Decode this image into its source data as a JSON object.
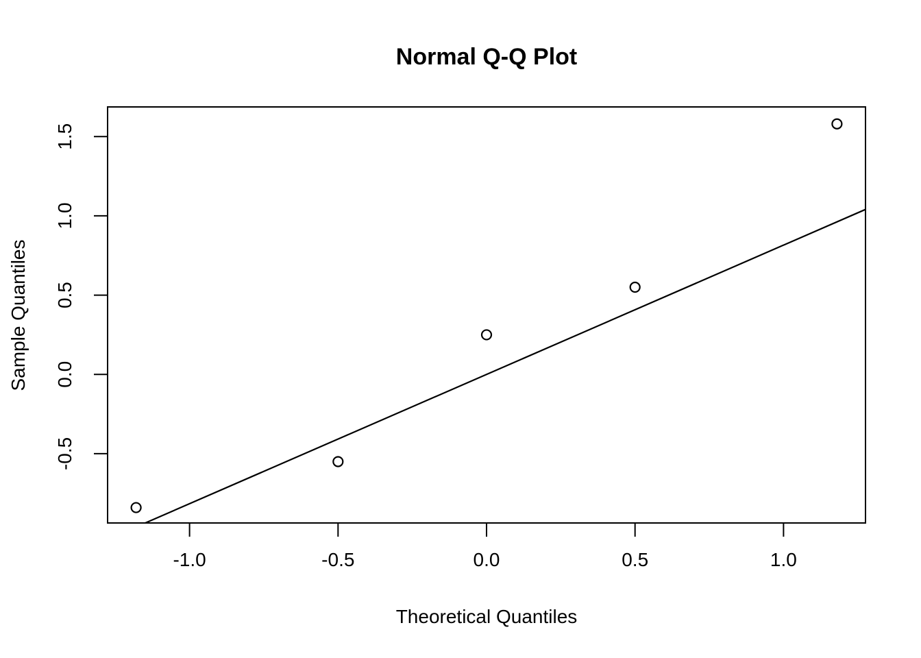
{
  "figure": {
    "background": "#ffffff",
    "stroke_color": "#000000"
  },
  "chart_data": {
    "type": "scatter",
    "title": "Normal Q-Q Plot",
    "xlabel": "Theoretical Quantiles",
    "ylabel": "Sample Quantiles",
    "marker": "open-circle",
    "grid": false,
    "legend": false,
    "x": [
      -1.18,
      -0.5,
      0.0,
      0.5,
      1.18
    ],
    "y": [
      -0.84,
      -0.55,
      0.25,
      0.55,
      1.58
    ],
    "points": [
      {
        "theoretical": -1.18,
        "sample": -0.84
      },
      {
        "theoretical": -0.5,
        "sample": -0.55
      },
      {
        "theoretical": 0.0,
        "sample": 0.25
      },
      {
        "theoretical": 0.5,
        "sample": 0.55
      },
      {
        "theoretical": 1.18,
        "sample": 1.58
      }
    ],
    "reference_line": {
      "slope": 0.8154,
      "intercept": 0.0
    },
    "xlim": [
      -1.276,
      1.276
    ],
    "ylim": [
      -0.937,
      1.687
    ],
    "xticks": {
      "values": [
        -1.0,
        -0.5,
        0.0,
        0.5,
        1.0
      ],
      "labels": [
        "-1.0",
        "-0.5",
        "0.0",
        "0.5",
        "1.0"
      ]
    },
    "yticks": {
      "values": [
        -0.5,
        0.0,
        0.5,
        1.0,
        1.5
      ],
      "labels": [
        "-0.5",
        "0.0",
        "0.5",
        "1.0",
        "1.5"
      ]
    }
  }
}
